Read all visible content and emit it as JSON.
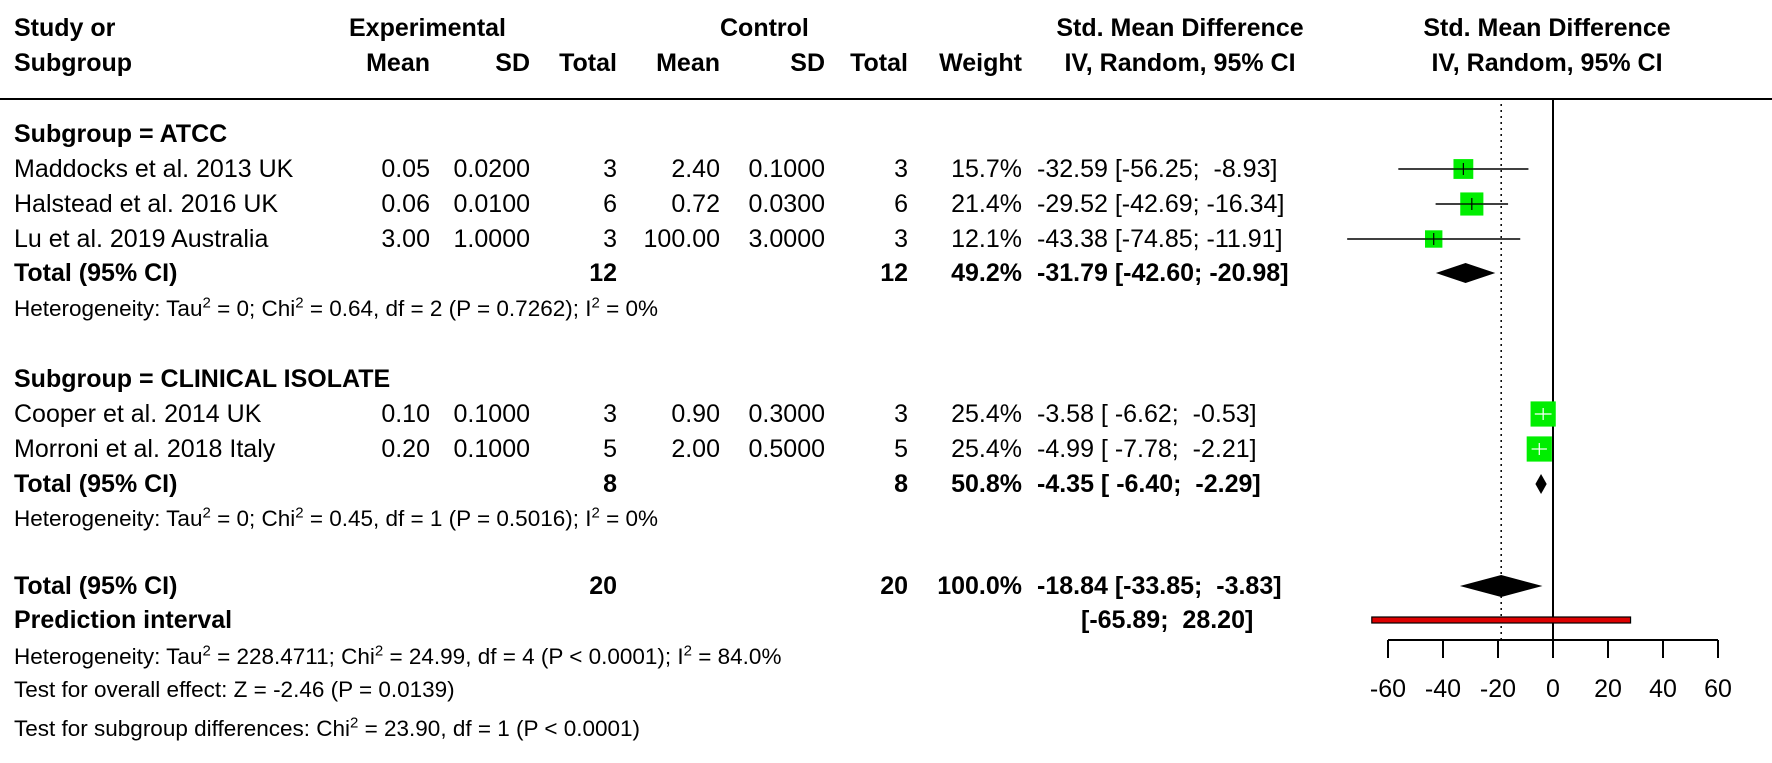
{
  "header": {
    "study_line1": "Study or",
    "study_line2": "Subgroup",
    "experimental": "Experimental",
    "control": "Control",
    "mean": "Mean",
    "sd": "SD",
    "total": "Total",
    "weight": "Weight",
    "smd_title": "Std. Mean Difference",
    "smd_method": "IV, Random, 95% CI"
  },
  "subgroups": [
    {
      "label": "Subgroup = ATCC",
      "studies": [
        {
          "name": "Maddocks et al. 2013 UK",
          "e_mean": "0.05",
          "e_sd": "0.0200",
          "e_total": "3",
          "c_mean": "2.40",
          "c_sd": "0.1000",
          "c_total": "3",
          "weight": "15.7%",
          "ci": "-32.59 [-56.25;  -8.93]"
        },
        {
          "name": "Halstead et al. 2016 UK",
          "e_mean": "0.06",
          "e_sd": "0.0100",
          "e_total": "6",
          "c_mean": "0.72",
          "c_sd": "0.0300",
          "c_total": "6",
          "weight": "21.4%",
          "ci": "-29.52 [-42.69; -16.34]"
        },
        {
          "name": "Lu et al. 2019 Australia",
          "e_mean": "3.00",
          "e_sd": "1.0000",
          "e_total": "3",
          "c_mean": "100.00",
          "c_sd": "3.0000",
          "c_total": "3",
          "weight": "12.1%",
          "ci": "-43.38 [-74.85; -11.91]"
        }
      ],
      "total": {
        "label": "Total (95% CI)",
        "e_total": "12",
        "c_total": "12",
        "weight": "49.2%",
        "ci": "-31.79 [-42.60; -20.98]"
      },
      "heterogeneity": {
        "a": "Heterogeneity: Tau",
        "b": " = 0; Chi",
        "c": " = 0.64, df = 2 (P = 0.7262); I",
        "d": " = 0%"
      }
    },
    {
      "label": "Subgroup = CLINICAL ISOLATE",
      "studies": [
        {
          "name": "Cooper et al. 2014 UK",
          "e_mean": "0.10",
          "e_sd": "0.1000",
          "e_total": "3",
          "c_mean": "0.90",
          "c_sd": "0.3000",
          "c_total": "3",
          "weight": "25.4%",
          "ci": "-3.58 [ -6.62;  -0.53]"
        },
        {
          "name": "Morroni et al. 2018 Italy",
          "e_mean": "0.20",
          "e_sd": "0.1000",
          "e_total": "5",
          "c_mean": "2.00",
          "c_sd": "0.5000",
          "c_total": "5",
          "weight": "25.4%",
          "ci": "-4.99 [ -7.78;  -2.21]"
        }
      ],
      "total": {
        "label": "Total (95% CI)",
        "e_total": "8",
        "c_total": "8",
        "weight": "50.8%",
        "ci": "-4.35 [ -6.40;  -2.29]"
      },
      "heterogeneity": {
        "a": "Heterogeneity: Tau",
        "b": " = 0; Chi",
        "c": " = 0.45, df = 1 (P = 0.5016); I",
        "d": " = 0%"
      }
    }
  ],
  "overall": {
    "label": "Total (95% CI)",
    "e_total": "20",
    "c_total": "20",
    "weight": "100.0%",
    "ci": "-18.84 [-33.85;  -3.83]",
    "prediction_label": "Prediction interval",
    "prediction_ci": "[-65.89;  28.20]",
    "heterogeneity": {
      "a": "Heterogeneity: Tau",
      "b": " = 228.4711; Chi",
      "c": " = 24.99, df = 4 (P < 0.0001); I",
      "d": " = 84.0%"
    },
    "test_overall": "Test for overall effect: Z = -2.46 (P = 0.0139)",
    "test_subgroup_a": "Test for subgroup differences: Chi",
    "test_subgroup_b": " = 23.90, df = 1 (P < 0.0001)",
    "sup2": "2"
  },
  "colors": {
    "square": "#00ee00",
    "diamond": "#000000",
    "prediction": "#dd0000"
  },
  "chart_data": {
    "type": "forest",
    "xlim": [
      -60,
      60
    ],
    "xticks": [
      "-60",
      "-40",
      "-20",
      "0",
      "20",
      "40",
      "60"
    ],
    "reference_line": 0,
    "overall_effect_line": -18.84,
    "studies": [
      {
        "name": "Maddocks et al. 2013 UK",
        "est": -32.59,
        "lo": -56.25,
        "hi": -8.93,
        "weight": 15.7
      },
      {
        "name": "Halstead et al. 2016 UK",
        "est": -29.52,
        "lo": -42.69,
        "hi": -16.34,
        "weight": 21.4
      },
      {
        "name": "Lu et al. 2019 Australia",
        "est": -43.38,
        "lo": -74.85,
        "hi": -11.91,
        "weight": 12.1
      },
      {
        "name": "Cooper et al. 2014 UK",
        "est": -3.58,
        "lo": -6.62,
        "hi": -0.53,
        "weight": 25.4
      },
      {
        "name": "Morroni et al. 2018 Italy",
        "est": -4.99,
        "lo": -7.78,
        "hi": -2.21,
        "weight": 25.4
      }
    ],
    "subgroup_totals": [
      {
        "name": "ATCC",
        "est": -31.79,
        "lo": -42.6,
        "hi": -20.98
      },
      {
        "name": "CLINICAL ISOLATE",
        "est": -4.35,
        "lo": -6.4,
        "hi": -2.29
      }
    ],
    "overall": {
      "est": -18.84,
      "lo": -33.85,
      "hi": -3.83
    },
    "prediction_interval": {
      "lo": -65.89,
      "hi": 28.2
    }
  }
}
